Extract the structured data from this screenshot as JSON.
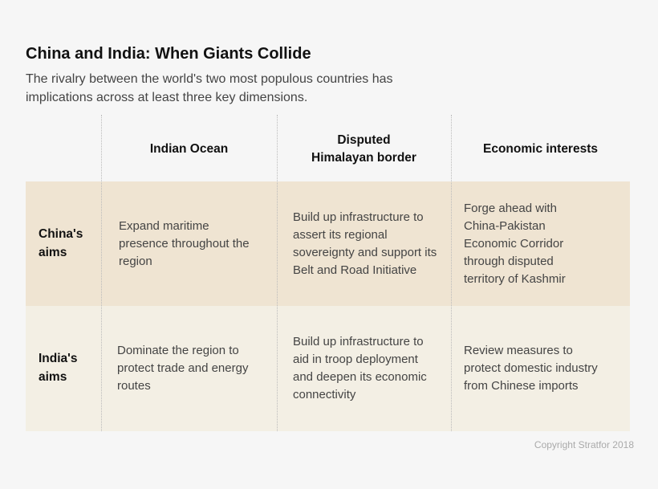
{
  "title": "China and India: When Giants Collide",
  "subtitle": "The rivalry between the world's two most populous countries has implications across at least three key dimensions.",
  "columns": [
    "Indian Ocean",
    "Disputed Himalayan border",
    "Economic interests"
  ],
  "rows": [
    {
      "label": "China's aims",
      "cells": [
        "Expand maritime presence throughout the region",
        "Build up infrastructure to assert its regional sovereignty and support its Belt and Road Initiative",
        "Forge ahead with China-Pakistan Economic Corridor through disputed territory of Kashmir"
      ]
    },
    {
      "label": "India's aims",
      "cells": [
        "Dominate the region to protect trade and energy routes",
        "Build up infrastructure to aid in troop deployment and deepen its economic connectivity",
        "Review measures to protect domestic industry from Chinese imports"
      ]
    }
  ],
  "copyright": "Copyright Stratfor 2018",
  "colors": {
    "background": "#f6f6f6",
    "china_row": "#efe4d2",
    "india_row": "#f3efe4"
  }
}
